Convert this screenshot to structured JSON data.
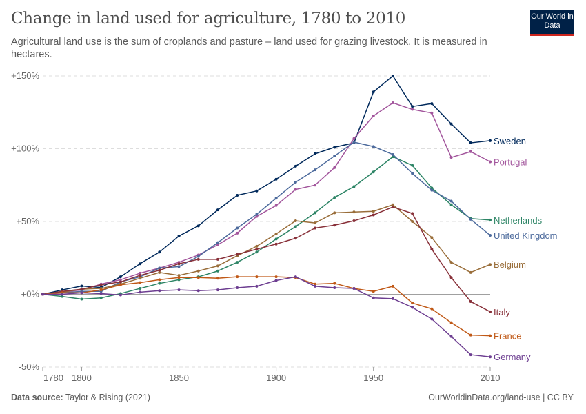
{
  "header": {
    "title": "Change in land used for agriculture, 1780 to 2010",
    "subtitle": "Agricultural land use is the sum of croplands and pasture – land used for grazing livestock. It is measured in hectares.",
    "logo_text": "Our World in Data"
  },
  "footer": {
    "source_label": "Data source:",
    "source_value": "Taylor & Rising (2021)",
    "url": "OurWorldinData.org/land-use | CC BY"
  },
  "chart_data": {
    "type": "line",
    "title": "Change in land used for agriculture, 1780 to 2010",
    "xlim": [
      1780,
      2010
    ],
    "ylim": [
      -50,
      150
    ],
    "x_ticks": [
      1780,
      1800,
      1850,
      1900,
      1950,
      2010
    ],
    "y_ticks": [
      {
        "v": -50,
        "label": "-50%"
      },
      {
        "v": 0,
        "label": "+0%"
      },
      {
        "v": 50,
        "label": "+50%"
      },
      {
        "v": 100,
        "label": "+100%"
      },
      {
        "v": 150,
        "label": "+150%"
      }
    ],
    "grid": "horizontal dashed",
    "legend": "inline right labels",
    "x": [
      1780,
      1790,
      1800,
      1810,
      1820,
      1830,
      1840,
      1850,
      1860,
      1870,
      1880,
      1890,
      1900,
      1910,
      1920,
      1930,
      1940,
      1950,
      1960,
      1970,
      1980,
      1990,
      2000,
      2010
    ],
    "series": [
      {
        "name": "Sweden",
        "color": "#00295b",
        "values": [
          0,
          3,
          5.7,
          4.7,
          12,
          21,
          29,
          40,
          47,
          58,
          68,
          71,
          79,
          88,
          96.5,
          101,
          104,
          139,
          150,
          129,
          131,
          117,
          104,
          105.5
        ]
      },
      {
        "name": "Portugal",
        "color": "#a2559c",
        "values": [
          0,
          1.5,
          3,
          7,
          10,
          14.5,
          18,
          22,
          27,
          34,
          42,
          53.5,
          61,
          72,
          75,
          87,
          107,
          122.5,
          131.5,
          127,
          124.5,
          94,
          98,
          91
        ]
      },
      {
        "name": "Netherlands",
        "color": "#2c8465",
        "values": [
          0,
          -1.5,
          -3.3,
          -2.5,
          0.5,
          4,
          7.5,
          10,
          12,
          16,
          22,
          29,
          38,
          46.5,
          56,
          66.5,
          74,
          84,
          94.5,
          88.5,
          73,
          61.5,
          52,
          51
        ]
      },
      {
        "name": "United Kingdom",
        "color": "#4c6a9c",
        "values": [
          0,
          1,
          2,
          2,
          8.5,
          12,
          18,
          19,
          26,
          35.5,
          45.5,
          55,
          66,
          77,
          85.5,
          95,
          104.5,
          101.5,
          96,
          83,
          71.5,
          64,
          51.5,
          40.5
        ]
      },
      {
        "name": "Belgium",
        "color": "#996d39",
        "values": [
          0,
          1.5,
          3.5,
          4,
          7,
          11,
          15,
          13,
          16,
          19.5,
          26.5,
          33,
          41.5,
          50.5,
          49,
          56,
          56.5,
          57,
          61.5,
          50,
          39,
          22,
          15,
          20.5
        ]
      },
      {
        "name": "Italy",
        "color": "#883039",
        "values": [
          0,
          2,
          3.5,
          6.5,
          8.5,
          13,
          16.5,
          21,
          24,
          24,
          27.5,
          31,
          34.5,
          38.5,
          45.5,
          47.5,
          50.5,
          54.5,
          60,
          55.5,
          31,
          11.5,
          -5,
          -12
        ]
      },
      {
        "name": "France",
        "color": "#c05917",
        "values": [
          0,
          1,
          1,
          3,
          6.5,
          8,
          10,
          11.5,
          11.5,
          11,
          12,
          12,
          12,
          11.5,
          7,
          7.5,
          4,
          2,
          5.5,
          -6,
          -10,
          -19.5,
          -28,
          -28.5
        ]
      },
      {
        "name": "Germany",
        "color": "#6d3e91",
        "values": [
          0,
          0,
          1,
          0.5,
          -0.5,
          1.5,
          2.5,
          3,
          2.5,
          3,
          4.5,
          5.5,
          9.5,
          12,
          5.5,
          4.5,
          4,
          -2.5,
          -3,
          -9,
          -17,
          -29,
          -41.5,
          -43
        ]
      }
    ]
  }
}
